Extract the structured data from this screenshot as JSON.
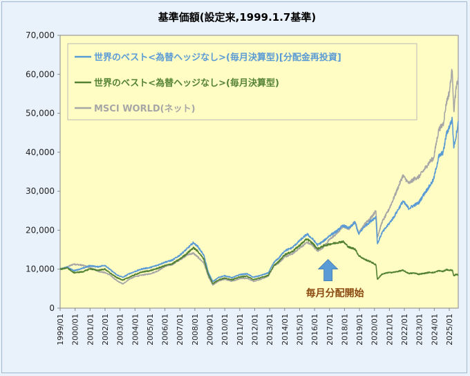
{
  "chart_data": {
    "type": "line",
    "title": "基準価額(設定来,1999.1.7基準)",
    "xlabel": "",
    "ylabel": "",
    "ylim": [
      0,
      70000
    ],
    "yticks": [
      {
        "value": 0,
        "label": "0"
      },
      {
        "value": 10000,
        "label": "10,000"
      },
      {
        "value": 20000,
        "label": "20,000"
      },
      {
        "value": 30000,
        "label": "30,000"
      },
      {
        "value": 40000,
        "label": "40,000"
      },
      {
        "value": 50000,
        "label": "50,000"
      },
      {
        "value": 60000,
        "label": "60,000"
      },
      {
        "value": 70000,
        "label": "70,000"
      }
    ],
    "xticks": [
      "1999/01",
      "2000/01",
      "2001/01",
      "2002/01",
      "2003/01",
      "2004/01",
      "2005/01",
      "2006/01",
      "2007/01",
      "2008/01",
      "2009/01",
      "2010/01",
      "2011/01",
      "2012/01",
      "2013/01",
      "2014/01",
      "2015/01",
      "2016/01",
      "2017/01",
      "2018/01",
      "2019/01",
      "2020/01",
      "2021/01",
      "2022/01",
      "2023/01",
      "2024/01",
      "2025/01"
    ],
    "grid": false,
    "legend_position": "top-left",
    "plot_background": "#fffdc4",
    "annotations": [
      {
        "text": "毎月分配開始",
        "x": 2016.9,
        "arrow_y": 12500,
        "arrow_color": "#5b9bd5"
      }
    ],
    "series": [
      {
        "name": "世界のベスト<為替ヘッジなし>(毎月決算型)[分配金再投資]",
        "color": "#5b9bd5",
        "points": [
          [
            1999.0,
            10000
          ],
          [
            1999.5,
            10500
          ],
          [
            1999.9,
            9600
          ],
          [
            2000.5,
            10200
          ],
          [
            2001.0,
            10900
          ],
          [
            2001.5,
            10600
          ],
          [
            2002.0,
            11000
          ],
          [
            2002.3,
            10000
          ],
          [
            2002.8,
            8500
          ],
          [
            2003.2,
            7900
          ],
          [
            2003.6,
            8800
          ],
          [
            2004.0,
            9400
          ],
          [
            2004.5,
            10100
          ],
          [
            2005.0,
            10400
          ],
          [
            2005.5,
            11000
          ],
          [
            2006.0,
            11800
          ],
          [
            2006.5,
            12300
          ],
          [
            2007.0,
            13600
          ],
          [
            2007.5,
            15300
          ],
          [
            2007.9,
            16800
          ],
          [
            2008.2,
            15800
          ],
          [
            2008.6,
            13600
          ],
          [
            2008.9,
            9200
          ],
          [
            2009.2,
            6800
          ],
          [
            2009.6,
            7900
          ],
          [
            2010.0,
            8300
          ],
          [
            2010.5,
            7800
          ],
          [
            2011.0,
            8600
          ],
          [
            2011.5,
            8800
          ],
          [
            2011.9,
            7900
          ],
          [
            2012.4,
            8400
          ],
          [
            2012.9,
            9000
          ],
          [
            2013.3,
            11800
          ],
          [
            2013.6,
            12800
          ],
          [
            2014.0,
            14700
          ],
          [
            2014.5,
            15500
          ],
          [
            2015.0,
            17300
          ],
          [
            2015.5,
            19000
          ],
          [
            2015.9,
            17600
          ],
          [
            2016.2,
            16200
          ],
          [
            2016.6,
            17200
          ],
          [
            2017.0,
            18600
          ],
          [
            2017.5,
            19800
          ],
          [
            2017.9,
            21200
          ],
          [
            2018.3,
            20500
          ],
          [
            2018.7,
            22000
          ],
          [
            2018.95,
            19000
          ],
          [
            2019.3,
            20800
          ],
          [
            2019.8,
            22500
          ],
          [
            2020.1,
            23400
          ],
          [
            2020.2,
            16500
          ],
          [
            2020.5,
            19300
          ],
          [
            2020.9,
            21300
          ],
          [
            2021.3,
            23400
          ],
          [
            2021.9,
            27400
          ],
          [
            2022.3,
            25600
          ],
          [
            2022.7,
            26500
          ],
          [
            2022.95,
            27000
          ],
          [
            2023.3,
            29200
          ],
          [
            2023.7,
            31400
          ],
          [
            2023.95,
            33000
          ],
          [
            2024.3,
            38900
          ],
          [
            2024.6,
            40000
          ],
          [
            2024.8,
            44500
          ],
          [
            2025.0,
            46500
          ],
          [
            2025.2,
            48500
          ],
          [
            2025.3,
            41500
          ],
          [
            2025.45,
            44000
          ],
          [
            2025.6,
            48000
          ]
        ]
      },
      {
        "name": "世界のベスト<為替ヘッジなし>(毎月決算型)",
        "color": "#548235",
        "points": [
          [
            1999.0,
            10000
          ],
          [
            1999.5,
            10300
          ],
          [
            1999.9,
            9100
          ],
          [
            2000.5,
            9300
          ],
          [
            2001.0,
            10100
          ],
          [
            2001.5,
            9700
          ],
          [
            2002.0,
            10000
          ],
          [
            2002.3,
            9100
          ],
          [
            2002.8,
            7800
          ],
          [
            2003.2,
            7200
          ],
          [
            2003.6,
            7900
          ],
          [
            2004.0,
            8600
          ],
          [
            2004.5,
            9300
          ],
          [
            2005.0,
            9600
          ],
          [
            2005.5,
            10200
          ],
          [
            2006.0,
            10900
          ],
          [
            2006.5,
            11400
          ],
          [
            2007.0,
            12600
          ],
          [
            2007.5,
            14100
          ],
          [
            2007.9,
            15500
          ],
          [
            2008.2,
            14600
          ],
          [
            2008.6,
            12600
          ],
          [
            2008.9,
            8600
          ],
          [
            2009.2,
            6300
          ],
          [
            2009.6,
            7300
          ],
          [
            2010.0,
            7700
          ],
          [
            2010.5,
            7300
          ],
          [
            2011.0,
            8000
          ],
          [
            2011.5,
            8200
          ],
          [
            2011.9,
            7300
          ],
          [
            2012.4,
            7800
          ],
          [
            2012.9,
            8400
          ],
          [
            2013.3,
            11000
          ],
          [
            2013.6,
            11900
          ],
          [
            2014.0,
            13700
          ],
          [
            2014.5,
            14500
          ],
          [
            2015.0,
            16100
          ],
          [
            2015.5,
            17800
          ],
          [
            2015.9,
            16500
          ],
          [
            2016.2,
            15200
          ],
          [
            2016.6,
            16000
          ],
          [
            2017.0,
            16400
          ],
          [
            2017.5,
            16800
          ],
          [
            2017.9,
            17100
          ],
          [
            2018.3,
            15600
          ],
          [
            2018.7,
            15200
          ],
          [
            2018.95,
            13500
          ],
          [
            2019.3,
            12600
          ],
          [
            2019.8,
            11800
          ],
          [
            2020.1,
            11100
          ],
          [
            2020.2,
            7400
          ],
          [
            2020.5,
            8700
          ],
          [
            2020.9,
            9100
          ],
          [
            2021.3,
            9200
          ],
          [
            2021.9,
            9700
          ],
          [
            2022.3,
            8900
          ],
          [
            2022.7,
            9000
          ],
          [
            2022.95,
            8700
          ],
          [
            2023.3,
            8900
          ],
          [
            2023.7,
            9200
          ],
          [
            2023.95,
            9100
          ],
          [
            2024.3,
            9600
          ],
          [
            2024.6,
            9400
          ],
          [
            2024.8,
            9900
          ],
          [
            2025.0,
            9700
          ],
          [
            2025.2,
            9800
          ],
          [
            2025.3,
            8200
          ],
          [
            2025.45,
            8700
          ],
          [
            2025.6,
            8500
          ]
        ]
      },
      {
        "name": "MSCI WORLD(ネット)",
        "color": "#a6a6a6",
        "points": [
          [
            1999.0,
            10000
          ],
          [
            1999.5,
            10600
          ],
          [
            1999.9,
            11300
          ],
          [
            2000.5,
            11000
          ],
          [
            2001.0,
            10400
          ],
          [
            2001.5,
            9500
          ],
          [
            2002.0,
            9100
          ],
          [
            2002.3,
            8600
          ],
          [
            2002.8,
            7000
          ],
          [
            2003.2,
            6200
          ],
          [
            2003.6,
            7400
          ],
          [
            2004.0,
            8100
          ],
          [
            2004.5,
            8500
          ],
          [
            2005.0,
            8800
          ],
          [
            2005.5,
            9500
          ],
          [
            2006.0,
            10700
          ],
          [
            2006.5,
            11200
          ],
          [
            2007.0,
            12400
          ],
          [
            2007.5,
            13700
          ],
          [
            2007.9,
            14100
          ],
          [
            2008.2,
            13100
          ],
          [
            2008.6,
            11600
          ],
          [
            2008.9,
            8100
          ],
          [
            2009.2,
            5900
          ],
          [
            2009.6,
            7000
          ],
          [
            2010.0,
            7400
          ],
          [
            2010.5,
            6900
          ],
          [
            2011.0,
            7600
          ],
          [
            2011.5,
            7700
          ],
          [
            2011.9,
            6900
          ],
          [
            2012.4,
            7400
          ],
          [
            2012.9,
            8200
          ],
          [
            2013.3,
            10900
          ],
          [
            2013.6,
            11600
          ],
          [
            2014.0,
            13100
          ],
          [
            2014.5,
            13900
          ],
          [
            2015.0,
            15400
          ],
          [
            2015.5,
            16900
          ],
          [
            2015.9,
            16000
          ],
          [
            2016.2,
            14600
          ],
          [
            2016.6,
            15700
          ],
          [
            2017.0,
            17600
          ],
          [
            2017.5,
            19200
          ],
          [
            2017.9,
            21000
          ],
          [
            2018.3,
            20400
          ],
          [
            2018.7,
            22300
          ],
          [
            2018.95,
            19200
          ],
          [
            2019.3,
            21300
          ],
          [
            2019.8,
            23400
          ],
          [
            2020.1,
            25000
          ],
          [
            2020.2,
            18200
          ],
          [
            2020.5,
            22000
          ],
          [
            2020.9,
            24800
          ],
          [
            2021.3,
            28300
          ],
          [
            2021.9,
            34000
          ],
          [
            2022.3,
            32000
          ],
          [
            2022.7,
            33300
          ],
          [
            2022.95,
            33600
          ],
          [
            2023.3,
            35400
          ],
          [
            2023.7,
            37600
          ],
          [
            2023.95,
            38500
          ],
          [
            2024.3,
            45800
          ],
          [
            2024.6,
            47300
          ],
          [
            2024.8,
            52600
          ],
          [
            2025.0,
            55300
          ],
          [
            2025.2,
            61500
          ],
          [
            2025.3,
            50500
          ],
          [
            2025.45,
            56000
          ],
          [
            2025.6,
            59200
          ]
        ]
      }
    ]
  }
}
